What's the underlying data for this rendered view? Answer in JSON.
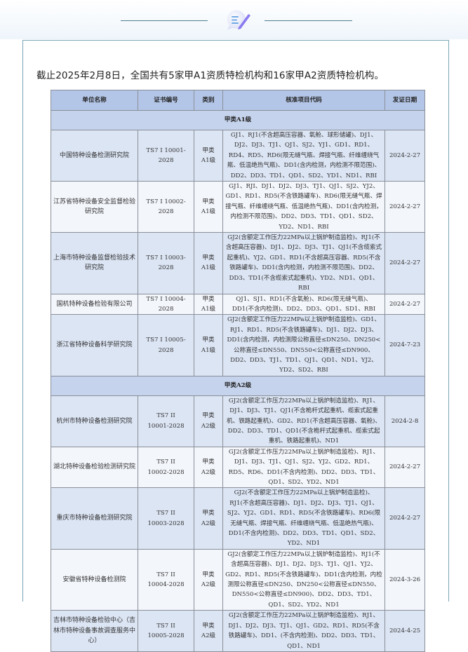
{
  "header": {
    "icon": "note-pen-icon"
  },
  "intro": "截止2025年2月8日，全国共有5家甲A1资质特检机构和16家甲A2资质特检机构。",
  "table": {
    "columns": [
      "单位名称",
      "证书编号",
      "类别",
      "核准项目代码",
      "发证日期"
    ],
    "sections": [
      {
        "title": "甲类A1级",
        "rows": [
          {
            "name": "中国特种设备检测研究院",
            "cert": "TS7 I 10001-2028",
            "type": "甲类\nA1级",
            "codes": "GJ1、RJ1(不含超高压容器、氧舱、球形储罐)、DJ1、DJ2、DJ3、TJ1、QJ1、SJ2、YJ1、GD1、RD1、RD4、RD5、RD6(限无缝气瓶、焊接气瓶、纤维缠绕气瓶、低温绝热气瓶)、DD1(含内检测，内检测不限范围)、DD2、DD3、TD1、QD1、SD2、YD1、ND1、RBI",
            "date": "2024-2-27"
          },
          {
            "name": "江苏省特种设备安全监督检验研究院",
            "cert": "TS7 I 10002-2028",
            "type": "甲类\nA1级",
            "codes": "GJ1、RJI、DJ1、DJ2、DJ3、TJ1、QJ1、SJ2、YJ2、GD1、RD1、RD5(不含铁路罐车)、RD6(限无缝气瓶、焊接气瓶、纤维缠绕气瓶、低温绝热气瓶)、DD1(含内检测，内检测不限范围)、DD2、DD3、TD1、QD1、SD2、YD2、ND1、RBI",
            "date": "2024-2-27"
          },
          {
            "name": "上海市特种设备监督检验技术研究院",
            "cert": "TS7 I 10003-2028",
            "type": "甲类\nA1级",
            "codes": "GJ2(含额定工作压力22MPa以上锅炉制造监检)、RJ1(不含超高压容器)、DJ1、DJ2、DJ3、TJ1、QJ1(不含缆索式起重机)、YJ2、GD1、RD1(不含超高压容器、RD5(不含铁路罐车)、DD1(含内检测，内检测不限范围)、DD2、DD3、TD1(不含缆索式起重机)、YD2、ND1、QD1、RBI",
            "date": "2024-2-27"
          },
          {
            "name": "国机特种设备检验有限公司",
            "cert": "TS7 I 10004-2028",
            "type": "甲类\nA1级",
            "codes": "QJ1、SJ1、RD1(不含氧舱)、RD6(限无缝气瓶)、DD1(不含内检测)、DD2、DD3、QD1、SD1、RBI",
            "date": "2024-2-27"
          },
          {
            "name": "浙江省特种设备科学研究院",
            "cert": "TS7 I 10005-2028",
            "type": "甲类\nA1级",
            "codes": "GJ2(含额定工作压力22MPa以上锅炉制造监检)、GD1、RJ1、RD1、RD5(不含铁路罐车)、DJ1、DJ2、DJ3、DD1(含内检测，内检测限公称直径≤DN250、DN250<公称直径≤DN550、DN550<公称直径≤DN900、DD2、DD3、TJ1、TD1、QJ1、QD1、ND1、YJ2、YD2、SD2、RBI",
            "date": "2024-7-23"
          }
        ]
      },
      {
        "title": "甲类A2级",
        "rows": [
          {
            "name": "杭州市特种设备检测研究院",
            "cert": "TS7 II\n10001-2028",
            "type": "甲类\nA2级",
            "codes": "GJ2(含额定工作压力22MPa以上锅炉制造监检)、RJ1、DJ1、DJ3、TJ1、QJ1(不含桅杆式起重机、缆索式起重机、铁路起重机)、GD2、RD1(不含超高压容器、氧舱)、DD2、DD3、TD1、QD1(不含桅杆式起重机、缆索式起重机、铁路起重机)、ND1",
            "date": "2024-2-8"
          },
          {
            "name": "湖北特种设备检验检测研究院",
            "cert": "TS7 II\n10002-2028",
            "type": "甲类\nA2级",
            "codes": "GJ2(含额定工作压力22MPa以上锅炉制造监检)、RJ1、DJ1、DJ3、TJ1、QJ1、SJ2、YJ2、GD2、RD1、RD5、RD6、DD1(不含内检测)、DD2、DD3、TD1、QD1、SD2、YD2、ND1",
            "date": "2024-2-27"
          },
          {
            "name": "重庆市特种设备检测研究院",
            "cert": "TS7 II\n10003-2028",
            "type": "甲类\nA2级",
            "codes": "GJ2(不含额定工作压力22MPa以上锅炉制造监检)、RJ1(不含超高压容器)、DJ1、DJ2、DJ3、TJ1、QJ1、SJ2、YJ2、GD1、RD1、RD5(不含铁路罐车)、RD6(限无缝气瓶、焊接气瓶、纤维缠绕气瓶、低温绝热气瓶)、DD1(不含内检测)、DD2、DD3、TD1、QD1、SD2、YD2、ND1",
            "date": "2024-2-27"
          },
          {
            "name": "安徽省特种设备检测院",
            "cert": "TS7 II\n10004-2028",
            "type": "甲类\nA2级",
            "codes": "GJ2(含额定工作压力22MPa以上锅炉制造监检)、RJ1(不含超高压容器)、DJ1、DJ2、DJ3、TJ1、QJ1、YJ2、GD2、RD1、RD5(不含铁路罐车)、DD1(含内检测，内检测限公称直径≤DN250、DN250<公称直径≤DN550、DN550<公称直径≤DN900)、DD2、DD3、TD1、QD1、SD2、YD2、ND1",
            "date": "2024-3-26"
          },
          {
            "name": "吉林市特种设备检验中心（吉林市特种设备事故调查服务中心）",
            "cert": "TS7 II\n10005-2028",
            "type": "甲类\nA2级",
            "codes": "GJ2(含额定工作压力22MPa以上锅炉制造监检)、RJ1、DJ1、DJ2、DJ3、TJ1、QJ1、GD2、RD1、RD5(不含铁路罐车)、DD1、(不含内检测)、DD2、DD3、TD1、QD1、ND1",
            "date": "2024-4-25"
          }
        ]
      }
    ]
  }
}
